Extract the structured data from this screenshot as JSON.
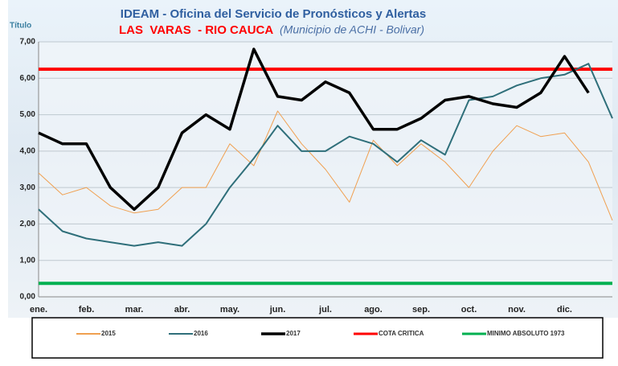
{
  "chart_data": {
    "type": "line",
    "title": "IDEAM - Oficina del Servicio de Pronósticos y Alertas",
    "subtitle": "LAS  VARAS  - RIO CAUCA",
    "subtitle_note": "(Municipio de ACHI -  Bolivar)",
    "y_label": "Título",
    "categories": [
      "ene.",
      null,
      "feb.",
      null,
      "mar.",
      null,
      "abr.",
      null,
      "may.",
      null,
      "jun.",
      null,
      "jul.",
      null,
      "ago.",
      null,
      "sep.",
      null,
      "oct.",
      null,
      "nov.",
      null,
      "dic.",
      null,
      null
    ],
    "series": [
      {
        "name": "2015",
        "color": "#f0a050",
        "width": 1,
        "values": [
          3.4,
          2.8,
          3.0,
          2.5,
          2.3,
          2.4,
          3.0,
          3.0,
          4.2,
          3.6,
          5.1,
          4.2,
          3.5,
          2.6,
          4.3,
          3.6,
          4.2,
          3.7,
          3.0,
          4.0,
          4.7,
          4.4,
          4.5,
          3.7,
          2.1
        ]
      },
      {
        "name": "2016",
        "color": "#2f6f7a",
        "width": 2,
        "values": [
          2.4,
          1.8,
          1.6,
          1.5,
          1.4,
          1.5,
          1.4,
          2.0,
          3.0,
          3.8,
          4.7,
          4.0,
          4.0,
          4.4,
          4.2,
          3.7,
          4.3,
          3.9,
          5.4,
          5.5,
          5.8,
          6.0,
          6.1,
          6.4,
          4.9
        ]
      },
      {
        "name": "2017",
        "color": "#000000",
        "width": 3.5,
        "values": [
          4.5,
          4.2,
          4.2,
          3.0,
          2.4,
          3.0,
          4.5,
          5.0,
          4.6,
          6.8,
          5.5,
          5.4,
          5.9,
          5.6,
          4.6,
          4.6,
          4.9,
          5.4,
          5.5,
          5.3,
          5.2,
          5.6,
          6.6,
          5.6,
          null
        ]
      }
    ],
    "reference_lines": [
      {
        "name": "COTA CRITICA",
        "color": "#ff0000",
        "value": 6.25
      },
      {
        "name": "MINIMO ABSOLUTO 1973",
        "color": "#00b050",
        "value": 0.37
      }
    ],
    "ylim": [
      0,
      7
    ],
    "yticks": [
      {
        "value": 0,
        "label": "0,00"
      },
      {
        "value": 1,
        "label": "1,00"
      },
      {
        "value": 2,
        "label": "2,00"
      },
      {
        "value": 3,
        "label": "3,00"
      },
      {
        "value": 4,
        "label": "4,00"
      },
      {
        "value": 5,
        "label": "5,00"
      },
      {
        "value": 6,
        "label": "6,00"
      },
      {
        "value": 7,
        "label": "7,00"
      }
    ],
    "grid": true
  }
}
